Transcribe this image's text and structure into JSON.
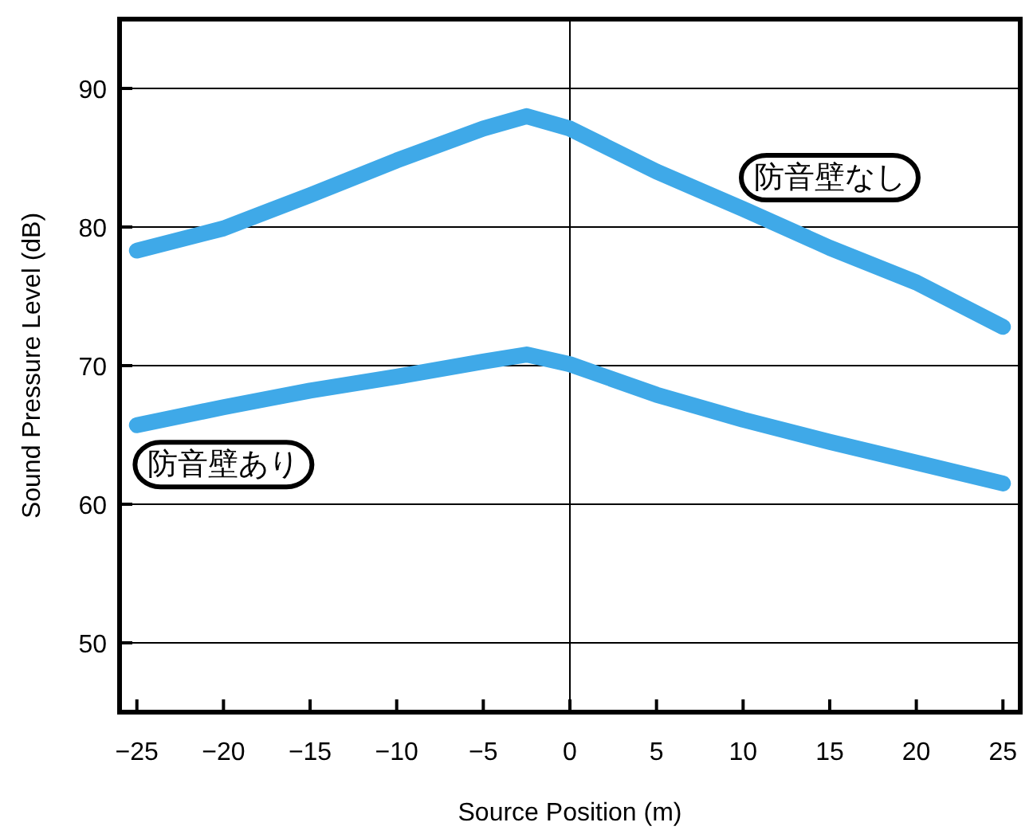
{
  "chart_data": {
    "type": "line",
    "xlabel": "Source Position (m)",
    "ylabel": "Sound Pressure Level (dB)",
    "xlim": [
      -26,
      26
    ],
    "xticks": [
      -25,
      -20,
      -15,
      -10,
      -5,
      0,
      5,
      10,
      15,
      20,
      25
    ],
    "ylim": [
      45,
      95
    ],
    "yticks": [
      50,
      60,
      70,
      80,
      90
    ],
    "grid": "y",
    "marker": "none",
    "line_style": "solid",
    "ref_lines": [
      {
        "axis": "x",
        "value": 0,
        "color": "#000000"
      }
    ],
    "series": [
      {
        "name": "防音壁なし",
        "color": "#3fa9e8",
        "x": [
          -25,
          -20,
          -15,
          -10,
          -5,
          -2.5,
          0,
          5,
          10,
          15,
          20,
          25
        ],
        "values": [
          78.3,
          79.9,
          82.3,
          84.8,
          87.1,
          88.0,
          87.1,
          84.0,
          81.3,
          78.5,
          76.0,
          72.8
        ]
      },
      {
        "name": "防音壁あり",
        "color": "#3fa9e8",
        "x": [
          -25,
          -20,
          -15,
          -10,
          -5,
          -2.5,
          0,
          5,
          10,
          15,
          20,
          25
        ],
        "values": [
          65.7,
          67.0,
          68.2,
          69.2,
          70.3,
          70.8,
          70.1,
          67.9,
          66.1,
          64.5,
          63.0,
          61.5
        ]
      }
    ]
  }
}
